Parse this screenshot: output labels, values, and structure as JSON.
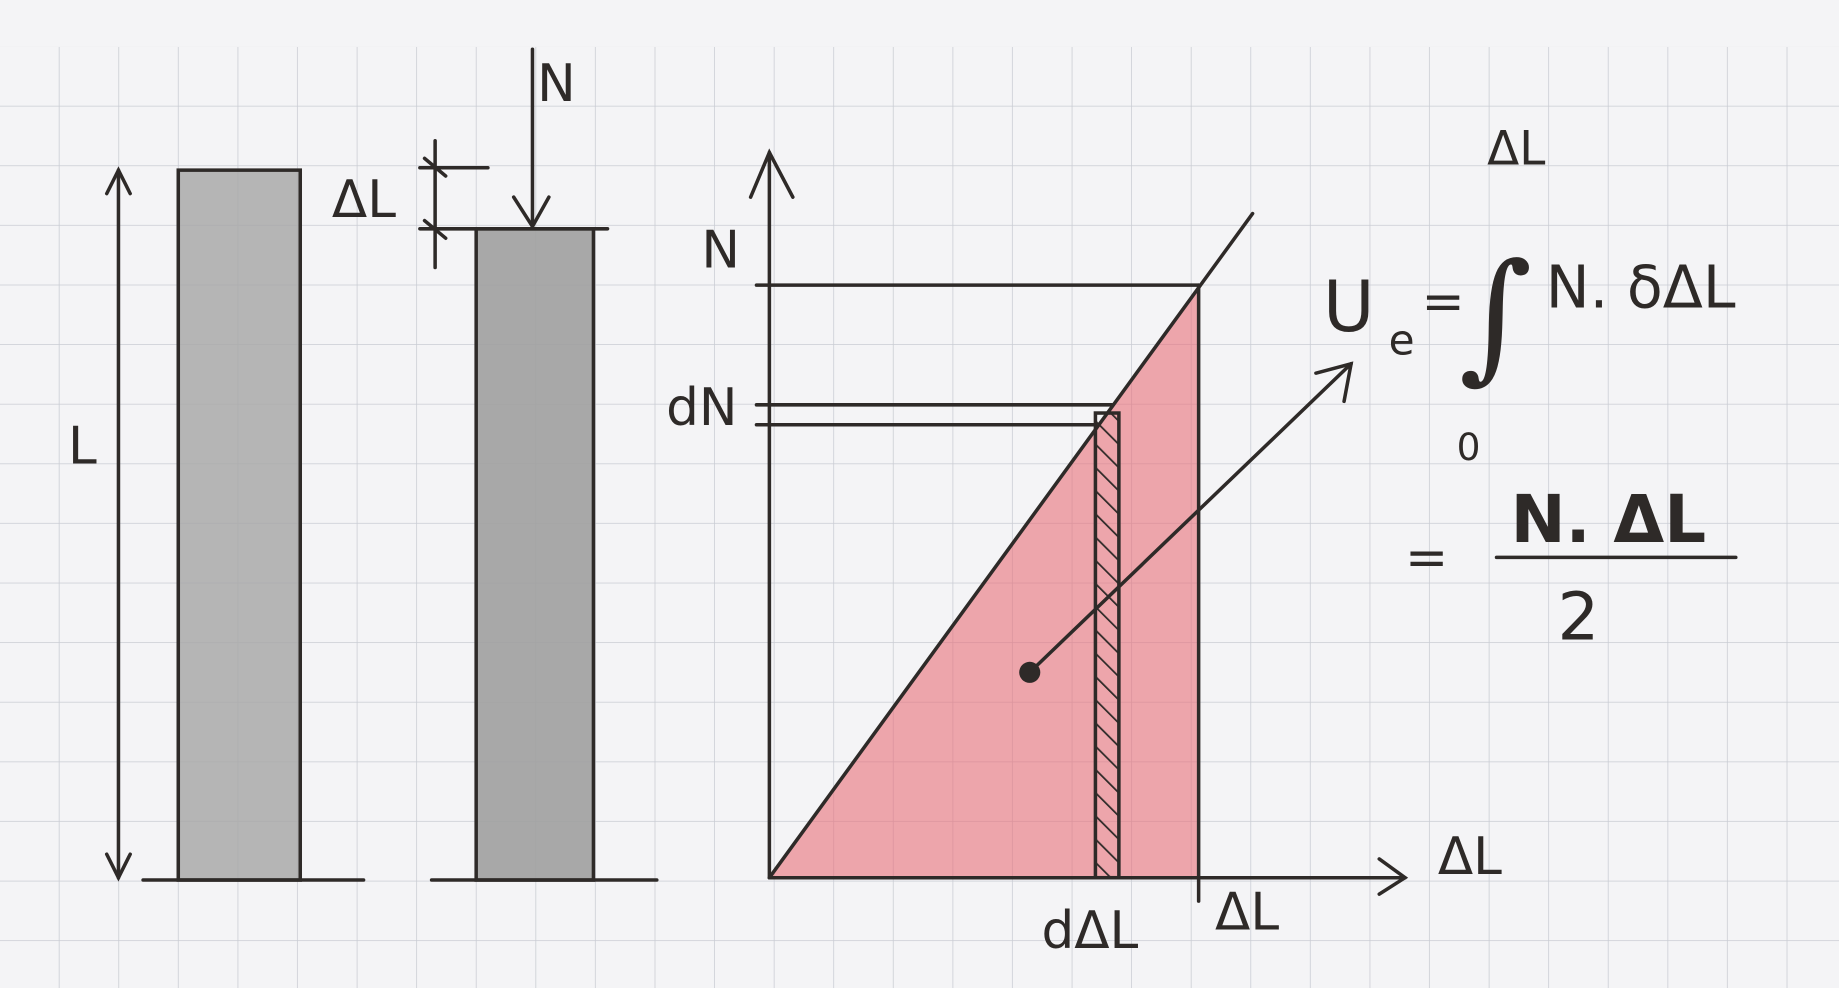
{
  "colors": {
    "paper": "#f4f4f6",
    "grid": "#c9ccd3",
    "ink": "#2e2a28",
    "bar_fill": "#a9a9a9",
    "energy_fill": "#e8707a"
  },
  "bars": {
    "length_label": "L",
    "force_label": "N",
    "elongation_label": "ΔL"
  },
  "graph": {
    "y_axis_label": "N",
    "x_axis_label": "ΔL",
    "dn_label": "dN",
    "ddl_label": "dΔL",
    "dl_tick_label": "ΔL"
  },
  "formula": {
    "lhs": "U",
    "lhs_sub": "e",
    "equals": "=",
    "integral": "∫",
    "upper_limit": "ΔL",
    "lower_limit": "0",
    "integrand": "N. δΔL",
    "equals2": "=",
    "numerator": "N. ΔL",
    "denominator": "2"
  }
}
